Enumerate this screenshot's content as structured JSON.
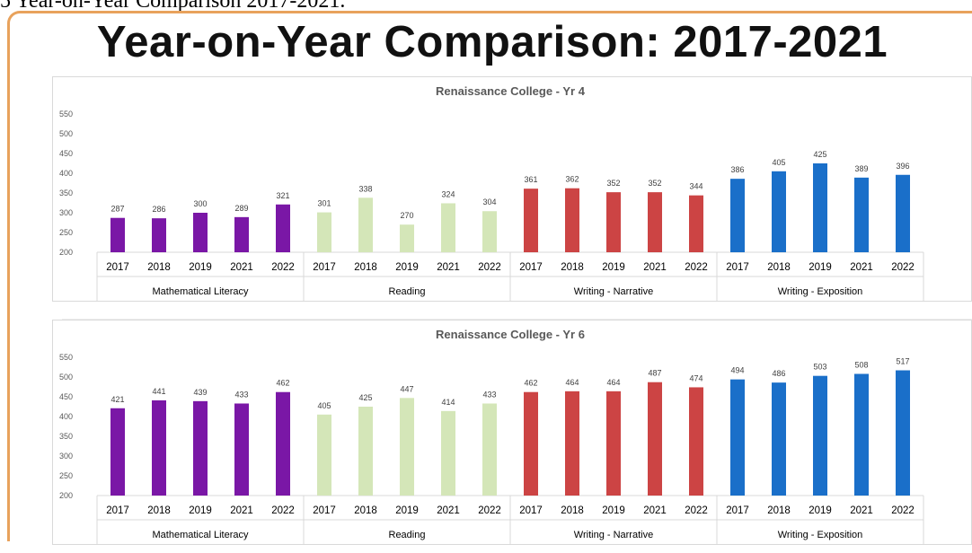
{
  "caption": "5 Year-on-Year Comparison 2017-2021.",
  "slide_title": "Year-on-Year Comparison: 2017-2021",
  "colors": {
    "Mathematical Literacy": "#7a17a6",
    "Reading": "#d4e6b8",
    "Writing - Narrative": "#cc4444",
    "Writing - Exposition": "#1a6fc9"
  },
  "chart_data": [
    {
      "type": "bar",
      "title": "Renaissance College - Yr 4",
      "ylim": [
        200,
        550
      ],
      "yticks": [
        200,
        250,
        300,
        350,
        400,
        450,
        500,
        550
      ],
      "legend": "none",
      "groups": [
        {
          "name": "Mathematical Literacy",
          "categories": [
            "2017",
            "2018",
            "2019",
            "2021",
            "2022"
          ],
          "values": [
            287,
            286,
            300,
            289,
            321
          ]
        },
        {
          "name": "Reading",
          "categories": [
            "2017",
            "2018",
            "2019",
            "2021",
            "2022"
          ],
          "values": [
            301,
            338,
            270,
            324,
            304
          ]
        },
        {
          "name": "Writing - Narrative",
          "categories": [
            "2017",
            "2018",
            "2019",
            "2021",
            "2022"
          ],
          "values": [
            361,
            362,
            352,
            352,
            344
          ]
        },
        {
          "name": "Writing - Exposition",
          "categories": [
            "2017",
            "2018",
            "2019",
            "2021",
            "2022"
          ],
          "values": [
            386,
            405,
            425,
            389,
            396
          ]
        }
      ]
    },
    {
      "type": "bar",
      "title": "Renaissance College - Yr 6",
      "ylim": [
        200,
        550
      ],
      "yticks": [
        200,
        250,
        300,
        350,
        400,
        450,
        500,
        550
      ],
      "legend": "none",
      "groups": [
        {
          "name": "Mathematical Literacy",
          "categories": [
            "2017",
            "2018",
            "2019",
            "2021",
            "2022"
          ],
          "values": [
            421,
            441,
            439,
            433,
            462
          ]
        },
        {
          "name": "Reading",
          "categories": [
            "2017",
            "2018",
            "2019",
            "2021",
            "2022"
          ],
          "values": [
            405,
            425,
            447,
            414,
            433
          ]
        },
        {
          "name": "Writing - Narrative",
          "categories": [
            "2017",
            "2018",
            "2019",
            "2021",
            "2022"
          ],
          "values": [
            462,
            464,
            464,
            487,
            474
          ]
        },
        {
          "name": "Writing - Exposition",
          "categories": [
            "2017",
            "2018",
            "2019",
            "2021",
            "2022"
          ],
          "values": [
            494,
            486,
            503,
            508,
            517
          ]
        }
      ]
    }
  ]
}
